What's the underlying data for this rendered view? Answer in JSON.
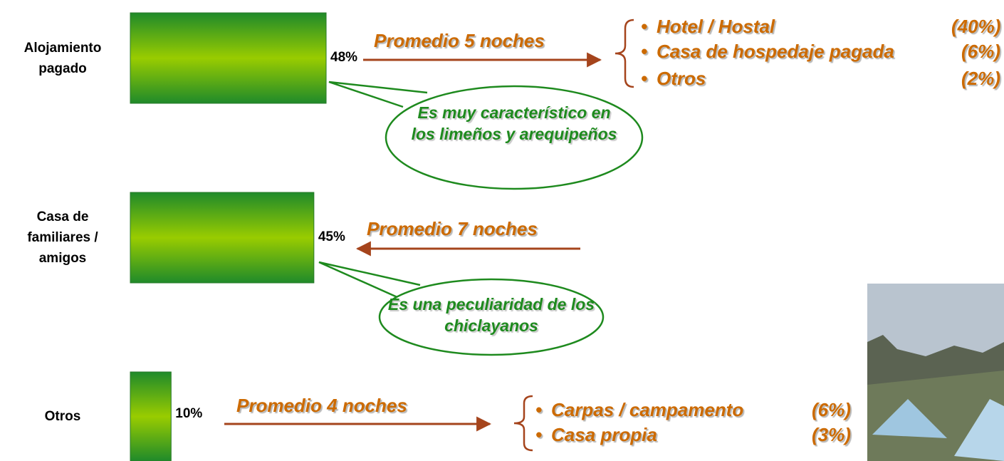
{
  "chart_data": {
    "type": "bar",
    "orientation": "horizontal",
    "categories": [
      "Alojamiento pagado",
      "Casa de familiares / amigos",
      "Otros"
    ],
    "values": [
      48,
      45,
      10
    ],
    "value_labels": [
      "48%",
      "45%",
      "10%"
    ],
    "color": "#99cc00",
    "annotations": [
      {
        "average": "Promedio 5 noches",
        "direction": "right",
        "breakdown": [
          {
            "label": "Hotel / Hostal",
            "share": "(40%)"
          },
          {
            "label": "Casa de hospedaje pagada",
            "share": "(6%)"
          },
          {
            "label": "Otros",
            "share": "(2%)"
          }
        ],
        "callout": "Es muy característico en los limeños y arequipeños"
      },
      {
        "average": "Promedio 7 noches",
        "direction": "left",
        "callout": "Es una peculiaridad de los chiclayanos"
      },
      {
        "average": "Promedio 4 noches",
        "direction": "right",
        "breakdown": [
          {
            "label": "Carpas / campamento",
            "share": "(6%)"
          },
          {
            "label": "Casa propia",
            "share": "(3%)"
          }
        ]
      }
    ]
  }
}
